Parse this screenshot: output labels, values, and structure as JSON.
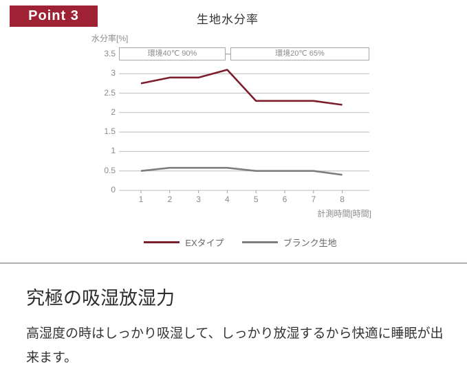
{
  "badge": {
    "label": "Point 3",
    "bg_color": "#9e2134"
  },
  "chart_data": {
    "type": "line",
    "title": "生地水分率",
    "xlabel": "計測時間[時間]",
    "ylabel": "水分率[%]",
    "x": [
      1,
      2,
      3,
      4,
      5,
      6,
      7,
      8
    ],
    "series": [
      {
        "name": "EXタイプ",
        "color": "#7b1d2b",
        "values": [
          2.75,
          2.9,
          2.9,
          3.1,
          2.3,
          2.3,
          2.3,
          2.2
        ]
      },
      {
        "name": "ブランク生地",
        "color": "#7d7d7d",
        "values": [
          0.5,
          0.58,
          0.58,
          0.58,
          0.5,
          0.5,
          0.5,
          0.4
        ]
      }
    ],
    "ylim": [
      0,
      3.5
    ],
    "yticks": [
      0,
      0.5,
      1,
      1.5,
      2,
      2.5,
      3,
      3.5
    ],
    "grid": true,
    "gridline_color": "#b9bdbd",
    "legend_position": "bottom",
    "annotations": [
      "環境40℃ 90%",
      "環境20℃ 65%"
    ]
  },
  "section": {
    "heading": "究極の吸湿放湿力",
    "body": "高湿度の時はしっかり吸湿して、しっかり放湿するから快適に睡眠が出来ます。"
  }
}
